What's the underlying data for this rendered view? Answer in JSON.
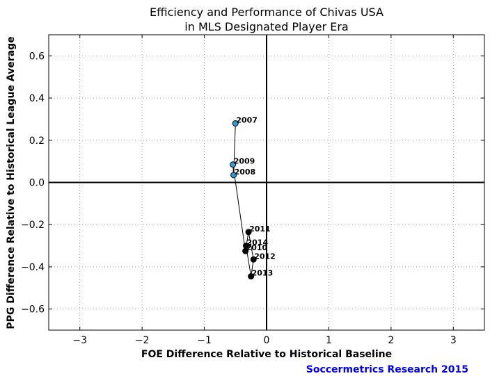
{
  "chart_data": {
    "type": "scatter",
    "title_lines": [
      "Efficiency and Performance of Chivas USA",
      "in MLS Designated Player Era"
    ],
    "xlabel": "FOE Difference Relative to Historical Baseline",
    "ylabel": "PPG Difference Relative to Historical League Average",
    "xlim": [
      -3.5,
      3.5
    ],
    "ylim": [
      -0.7,
      0.7
    ],
    "xticks": [
      -3,
      -2,
      -1,
      0,
      1,
      2,
      3
    ],
    "xtick_labels": [
      "−3",
      "−2",
      "−1",
      "0",
      "1",
      "2",
      "3"
    ],
    "yticks": [
      0.6,
      0.4,
      0.2,
      0.0,
      -0.2,
      -0.4,
      -0.6
    ],
    "ytick_labels": [
      "0.6",
      "0.4",
      "0.2",
      "0.0",
      "−0.2",
      "−0.4",
      "−0.6"
    ],
    "grid": true,
    "points": [
      {
        "label": "2007",
        "x": -0.5,
        "y": 0.28,
        "color": "#2aa0d8"
      },
      {
        "label": "2008",
        "x": -0.53,
        "y": 0.035,
        "color": "#2aa0d8"
      },
      {
        "label": "2009",
        "x": -0.54,
        "y": 0.085,
        "color": "#2aa0d8"
      },
      {
        "label": "2010",
        "x": -0.34,
        "y": -0.325,
        "color": "#000000"
      },
      {
        "label": "2011",
        "x": -0.29,
        "y": -0.235,
        "color": "#000000"
      },
      {
        "label": "2012",
        "x": -0.21,
        "y": -0.365,
        "color": "#000000"
      },
      {
        "label": "2013",
        "x": -0.25,
        "y": -0.445,
        "color": "#000000"
      },
      {
        "label": "2014",
        "x": -0.33,
        "y": -0.3,
        "color": "#000000"
      }
    ],
    "line_color": "#000000"
  },
  "credit": {
    "text": "Soccermetrics Research 2015",
    "color": "#0000ee"
  }
}
